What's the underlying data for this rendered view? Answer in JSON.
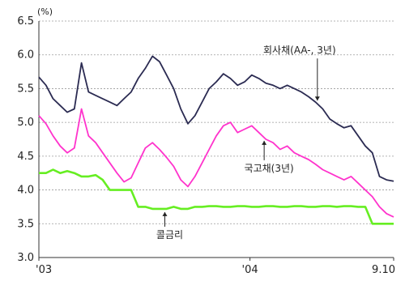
{
  "chart_data": {
    "type": "line",
    "ylabel": "(%)",
    "ylim": [
      3.0,
      6.5
    ],
    "yticks": [
      "6.5",
      "6.0",
      "5.5",
      "5.0",
      "4.5",
      "4.0",
      "3.5",
      "3.0"
    ],
    "xticks": [
      {
        "label": "'03",
        "x": 0
      },
      {
        "label": "'04",
        "x": 0.595
      },
      {
        "label": "9.10",
        "x": 1
      }
    ],
    "grid": "horizontal-dashed",
    "x": [
      0.0,
      0.02,
      0.04,
      0.06,
      0.08,
      0.1,
      0.12,
      0.14,
      0.16,
      0.18,
      0.2,
      0.22,
      0.24,
      0.26,
      0.28,
      0.3,
      0.32,
      0.34,
      0.36,
      0.38,
      0.4,
      0.42,
      0.44,
      0.46,
      0.48,
      0.5,
      0.52,
      0.54,
      0.56,
      0.58,
      0.6,
      0.62,
      0.64,
      0.66,
      0.68,
      0.7,
      0.72,
      0.74,
      0.76,
      0.78,
      0.8,
      0.82,
      0.84,
      0.86,
      0.88,
      0.9,
      0.92,
      0.94,
      0.96,
      0.98,
      1.0
    ],
    "series": [
      {
        "name": "회사채(AA-, 3년)",
        "color": "#2b2b52",
        "values": [
          5.67,
          5.55,
          5.35,
          5.25,
          5.15,
          5.2,
          5.88,
          5.45,
          5.4,
          5.35,
          5.3,
          5.25,
          5.35,
          5.45,
          5.65,
          5.8,
          5.98,
          5.9,
          5.7,
          5.5,
          5.2,
          4.98,
          5.1,
          5.3,
          5.5,
          5.6,
          5.72,
          5.65,
          5.55,
          5.6,
          5.7,
          5.65,
          5.58,
          5.55,
          5.5,
          5.55,
          5.5,
          5.45,
          5.38,
          5.3,
          5.2,
          5.05,
          4.98,
          4.92,
          4.95,
          4.8,
          4.65,
          4.55,
          4.2,
          4.15,
          4.13
        ]
      },
      {
        "name": "국고채(3년)",
        "color": "#ff33cc",
        "values": [
          5.1,
          4.98,
          4.8,
          4.65,
          4.55,
          4.62,
          5.2,
          4.8,
          4.7,
          4.55,
          4.4,
          4.25,
          4.12,
          4.18,
          4.4,
          4.62,
          4.7,
          4.6,
          4.48,
          4.35,
          4.15,
          4.05,
          4.2,
          4.4,
          4.6,
          4.8,
          4.95,
          5.0,
          4.85,
          4.9,
          4.95,
          4.85,
          4.75,
          4.7,
          4.6,
          4.65,
          4.55,
          4.5,
          4.45,
          4.38,
          4.3,
          4.25,
          4.2,
          4.15,
          4.2,
          4.1,
          4.0,
          3.9,
          3.75,
          3.65,
          3.6
        ]
      },
      {
        "name": "콜금리",
        "color": "#66ee22",
        "values": [
          4.25,
          4.25,
          4.3,
          4.25,
          4.28,
          4.25,
          4.2,
          4.2,
          4.22,
          4.15,
          4.0,
          4.0,
          4.0,
          4.0,
          3.75,
          3.75,
          3.72,
          3.72,
          3.72,
          3.75,
          3.72,
          3.72,
          3.75,
          3.75,
          3.76,
          3.76,
          3.75,
          3.75,
          3.76,
          3.76,
          3.75,
          3.75,
          3.76,
          3.76,
          3.75,
          3.75,
          3.76,
          3.76,
          3.75,
          3.75,
          3.76,
          3.76,
          3.75,
          3.76,
          3.76,
          3.75,
          3.75,
          3.5,
          3.5,
          3.5,
          3.5
        ]
      }
    ],
    "annotations": [
      {
        "text": "회사채(AA-, 3년)",
        "series": 0,
        "at": 0.785
      },
      {
        "text": "국고채(3년)",
        "series": 1,
        "at": 0.635
      },
      {
        "text": "콜금리",
        "series": 2,
        "at": 0.355
      }
    ]
  }
}
